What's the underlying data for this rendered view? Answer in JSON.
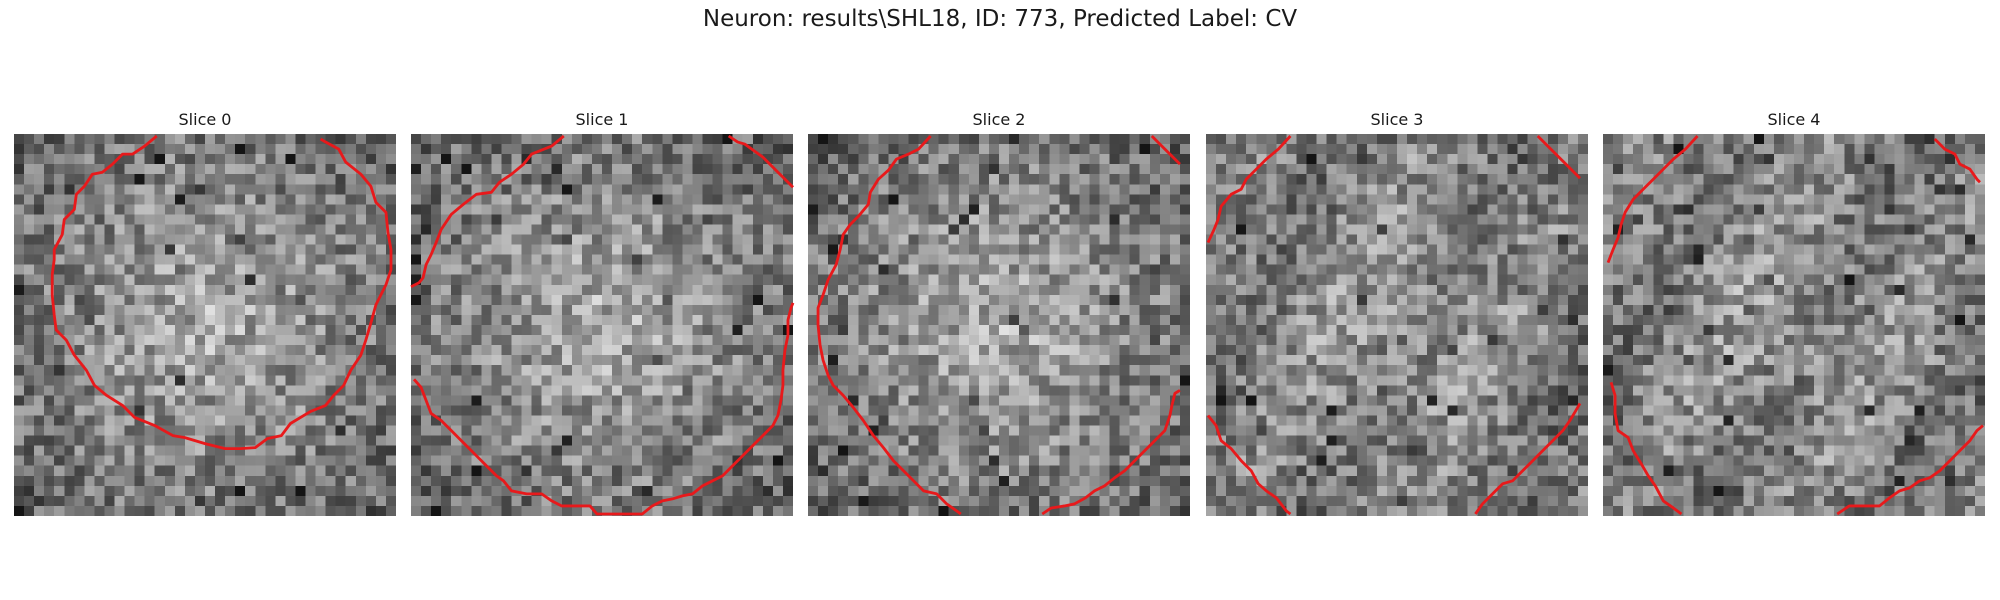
{
  "figure": {
    "title": "Neuron: results\\SHL18, ID: 773, Predicted Label: CV"
  },
  "slices": [
    {
      "label": "Slice 0",
      "seed": 11,
      "bright_center": true,
      "contour": [
        [
          [
            14.2,
            0.2
          ],
          [
            13,
            1.2
          ],
          [
            11.8,
            2
          ],
          [
            10.8,
            2
          ],
          [
            9.8,
            3
          ],
          [
            8.8,
            3.8
          ],
          [
            7.8,
            4
          ],
          [
            7,
            5.2
          ],
          [
            6.2,
            6
          ],
          [
            6,
            7.5
          ],
          [
            5,
            8.5
          ],
          [
            4.8,
            10
          ],
          [
            4,
            11.5
          ],
          [
            4,
            12.5
          ],
          [
            3.8,
            14
          ],
          [
            3.8,
            16
          ],
          [
            4,
            18
          ],
          [
            4.2,
            19.5
          ],
          [
            5.2,
            20.5
          ],
          [
            6,
            22
          ],
          [
            7.2,
            23.5
          ],
          [
            8,
            25
          ],
          [
            9.2,
            26
          ],
          [
            10.8,
            27
          ],
          [
            12,
            28.2
          ],
          [
            14,
            29
          ],
          [
            15.8,
            30
          ],
          [
            17,
            30.2
          ],
          [
            19,
            30.8
          ],
          [
            21,
            31.3
          ],
          [
            22.5,
            31.3
          ],
          [
            24,
            31.2
          ],
          [
            25.2,
            30.3
          ],
          [
            26.6,
            30
          ],
          [
            27.5,
            28.8
          ],
          [
            29.5,
            27.6
          ],
          [
            31,
            27
          ],
          [
            31.8,
            26
          ],
          [
            32.8,
            25
          ],
          [
            33.5,
            23.5
          ],
          [
            34.5,
            22
          ],
          [
            35,
            20.5
          ],
          [
            35.5,
            18.8
          ],
          [
            36,
            17
          ],
          [
            37,
            15
          ],
          [
            37.5,
            13.5
          ],
          [
            37.5,
            11.5
          ],
          [
            37.2,
            9.8
          ],
          [
            37,
            7.8
          ],
          [
            36,
            6.8
          ],
          [
            35.5,
            5.2
          ],
          [
            34.5,
            4
          ],
          [
            33,
            2.8
          ],
          [
            32.3,
            1.5
          ],
          [
            31,
            0.8
          ],
          [
            30.5,
            0.5
          ]
        ]
      ]
    },
    {
      "label": "Slice 1",
      "seed": 23,
      "bright_center": true,
      "contour": [
        [
          [
            15.2,
            0.2
          ],
          [
            14,
            1.2
          ],
          [
            12,
            2
          ],
          [
            11.2,
            3
          ],
          [
            10,
            4
          ],
          [
            8.8,
            4.8
          ],
          [
            8,
            5.8
          ],
          [
            6.5,
            6
          ],
          [
            5.2,
            7
          ],
          [
            4,
            8
          ],
          [
            3,
            9.5
          ],
          [
            2.5,
            10.8
          ],
          [
            2,
            12
          ],
          [
            1.5,
            13
          ],
          [
            1.2,
            14.3
          ],
          [
            0.8,
            14.8
          ],
          [
            0,
            15.2
          ]
        ],
        [
          [
            0.3,
            24.4
          ],
          [
            1,
            25.2
          ],
          [
            1.5,
            26.5
          ],
          [
            2,
            27.8
          ],
          [
            3,
            28.5
          ],
          [
            4,
            29.5
          ],
          [
            5,
            30.5
          ],
          [
            5.5,
            31
          ],
          [
            6.5,
            32
          ],
          [
            7.5,
            33
          ],
          [
            8.5,
            34
          ],
          [
            9.2,
            34.5
          ],
          [
            10,
            35.5
          ],
          [
            11.5,
            35.8
          ],
          [
            13,
            35.8
          ],
          [
            14,
            36.5
          ],
          [
            15,
            37
          ],
          [
            16,
            37
          ],
          [
            17.8,
            37
          ],
          [
            18.5,
            37.8
          ],
          [
            20,
            37.8
          ],
          [
            22,
            37.8
          ],
          [
            23,
            37.8
          ],
          [
            24,
            37
          ],
          [
            25,
            36.5
          ],
          [
            26,
            36.3
          ],
          [
            27,
            36
          ],
          [
            28,
            35.8
          ],
          [
            29,
            35
          ],
          [
            30,
            34.5
          ],
          [
            31,
            34
          ],
          [
            32,
            33
          ],
          [
            33,
            32
          ],
          [
            34,
            31
          ],
          [
            35,
            30
          ],
          [
            36,
            29
          ],
          [
            36.5,
            28
          ],
          [
            36.8,
            26.5
          ],
          [
            37,
            25
          ],
          [
            37,
            23.5
          ],
          [
            37.2,
            21.5
          ],
          [
            37.5,
            20
          ],
          [
            37.5,
            18.5
          ],
          [
            37.8,
            17.3
          ],
          [
            38,
            16.8
          ]
        ],
        [
          [
            31.6,
            0.2
          ],
          [
            32.5,
            0.8
          ],
          [
            33.2,
            1
          ],
          [
            35,
            2.3
          ],
          [
            36.5,
            3.8
          ],
          [
            38,
            5.3
          ]
        ]
      ]
    },
    {
      "label": "Slice 2",
      "seed": 37,
      "bright_center": true,
      "contour": [
        [
          [
            12.2,
            0.2
          ],
          [
            11,
            1.5
          ],
          [
            10,
            2
          ],
          [
            8.8,
            2.5
          ],
          [
            8,
            3.6
          ],
          [
            7,
            4.5
          ],
          [
            6.2,
            5.8
          ],
          [
            6,
            7
          ],
          [
            5,
            8.2
          ],
          [
            4.2,
            9
          ],
          [
            3.5,
            10
          ],
          [
            3.2,
            11.5
          ],
          [
            2.8,
            13
          ],
          [
            2,
            14.5
          ],
          [
            1.5,
            16
          ],
          [
            1,
            17.3
          ],
          [
            1,
            19
          ],
          [
            1.2,
            21
          ],
          [
            1.5,
            22.5
          ],
          [
            2,
            24
          ],
          [
            2.5,
            25
          ],
          [
            3.5,
            26
          ],
          [
            4.5,
            27.2
          ],
          [
            5.5,
            28.5
          ],
          [
            6.5,
            30
          ],
          [
            7.5,
            31.2
          ],
          [
            8.5,
            32.5
          ],
          [
            9.5,
            33.5
          ],
          [
            10.5,
            34.5
          ],
          [
            11.5,
            35.5
          ],
          [
            12.8,
            35.8
          ],
          [
            13.8,
            36.8
          ],
          [
            14.8,
            37.5
          ],
          [
            15.2,
            37.8
          ]
        ],
        [
          [
            34.2,
            0.2
          ],
          [
            35.5,
            1.5
          ],
          [
            37,
            3
          ]
        ],
        [
          [
            23.3,
            37.8
          ],
          [
            24.2,
            37.2
          ],
          [
            25.5,
            37
          ],
          [
            26.5,
            36.8
          ],
          [
            27.6,
            36.2
          ],
          [
            28.5,
            35.5
          ],
          [
            29.5,
            35
          ],
          [
            30.5,
            34.2
          ],
          [
            31.5,
            33.5
          ],
          [
            32.5,
            32.5
          ],
          [
            33.5,
            31.5
          ],
          [
            34.5,
            30.5
          ],
          [
            35.5,
            29.5
          ],
          [
            36,
            28
          ],
          [
            36.2,
            27
          ],
          [
            36.5,
            25.8
          ],
          [
            37,
            25.5
          ]
        ]
      ]
    },
    {
      "label": "Slice 3",
      "seed": 53,
      "bright_center": false,
      "contour": [
        [
          [
            8.4,
            0.2
          ],
          [
            7.2,
            1.5
          ],
          [
            6,
            2.5
          ],
          [
            5,
            3.5
          ],
          [
            4,
            4.5
          ],
          [
            3.5,
            5.5
          ],
          [
            2.5,
            6
          ],
          [
            1.5,
            7.2
          ],
          [
            1.2,
            8.5
          ],
          [
            0.8,
            9.5
          ],
          [
            0.2,
            10.8
          ]
        ],
        [
          [
            0.2,
            28
          ],
          [
            1,
            29
          ],
          [
            1.5,
            30.5
          ],
          [
            2.5,
            31.3
          ],
          [
            3.5,
            32.5
          ],
          [
            4.5,
            33.5
          ],
          [
            5.2,
            34.8
          ],
          [
            6,
            35.5
          ],
          [
            7,
            36.2
          ],
          [
            8,
            37.5
          ],
          [
            8.4,
            37.8
          ]
        ],
        [
          [
            33,
            0.2
          ],
          [
            34.5,
            1.7
          ],
          [
            36,
            3.2
          ],
          [
            37.2,
            4.4
          ]
        ],
        [
          [
            26.8,
            37.8
          ],
          [
            27.5,
            36.8
          ],
          [
            28.5,
            35.8
          ],
          [
            29.5,
            34.8
          ],
          [
            30.5,
            34.5
          ],
          [
            31.5,
            33.5
          ],
          [
            32.5,
            32.5
          ],
          [
            33.5,
            31.5
          ],
          [
            34.5,
            30.5
          ],
          [
            35.5,
            29.5
          ],
          [
            36.2,
            28.5
          ],
          [
            36.8,
            27.5
          ],
          [
            37.2,
            26.8
          ]
        ]
      ]
    },
    {
      "label": "Slice 4",
      "seed": 71,
      "bright_center": false,
      "contour": [
        [
          [
            9.4,
            0.2
          ],
          [
            8.2,
            1.5
          ],
          [
            7,
            2.5
          ],
          [
            6,
            3.5
          ],
          [
            5,
            4.5
          ],
          [
            4,
            5.5
          ],
          [
            3,
            6.5
          ],
          [
            2.2,
            7.8
          ],
          [
            1.8,
            9
          ],
          [
            1.5,
            10.3
          ],
          [
            1,
            11.5
          ],
          [
            0.5,
            12.8
          ]
        ],
        [
          [
            0.8,
            24.7
          ],
          [
            1.2,
            26
          ],
          [
            1.2,
            27.8
          ],
          [
            1.5,
            29.5
          ],
          [
            2.5,
            30.2
          ],
          [
            3,
            31.5
          ],
          [
            3.8,
            32.8
          ],
          [
            4.5,
            34
          ],
          [
            5.2,
            35
          ],
          [
            6,
            36.5
          ],
          [
            7,
            37.2
          ],
          [
            7.8,
            37.8
          ]
        ],
        [
          [
            33,
            0.5
          ],
          [
            34,
            1.5
          ],
          [
            35,
            2
          ],
          [
            35.5,
            3
          ],
          [
            36.5,
            3.5
          ],
          [
            37.2,
            4.5
          ],
          [
            37.5,
            4.8
          ]
        ],
        [
          [
            23.3,
            37.8
          ],
          [
            24.5,
            37
          ],
          [
            26,
            37
          ],
          [
            27.5,
            37
          ],
          [
            28.5,
            36.2
          ],
          [
            29.5,
            35.5
          ],
          [
            30.5,
            35.2
          ],
          [
            31.5,
            34.5
          ],
          [
            32.5,
            34.2
          ],
          [
            33.5,
            33.5
          ],
          [
            34.5,
            32.5
          ],
          [
            35.5,
            31.5
          ],
          [
            36.5,
            30.5
          ],
          [
            37.2,
            29.5
          ],
          [
            37.8,
            29
          ]
        ]
      ]
    }
  ],
  "colors": {
    "contour": "#e8191b",
    "background": "#ffffff"
  }
}
